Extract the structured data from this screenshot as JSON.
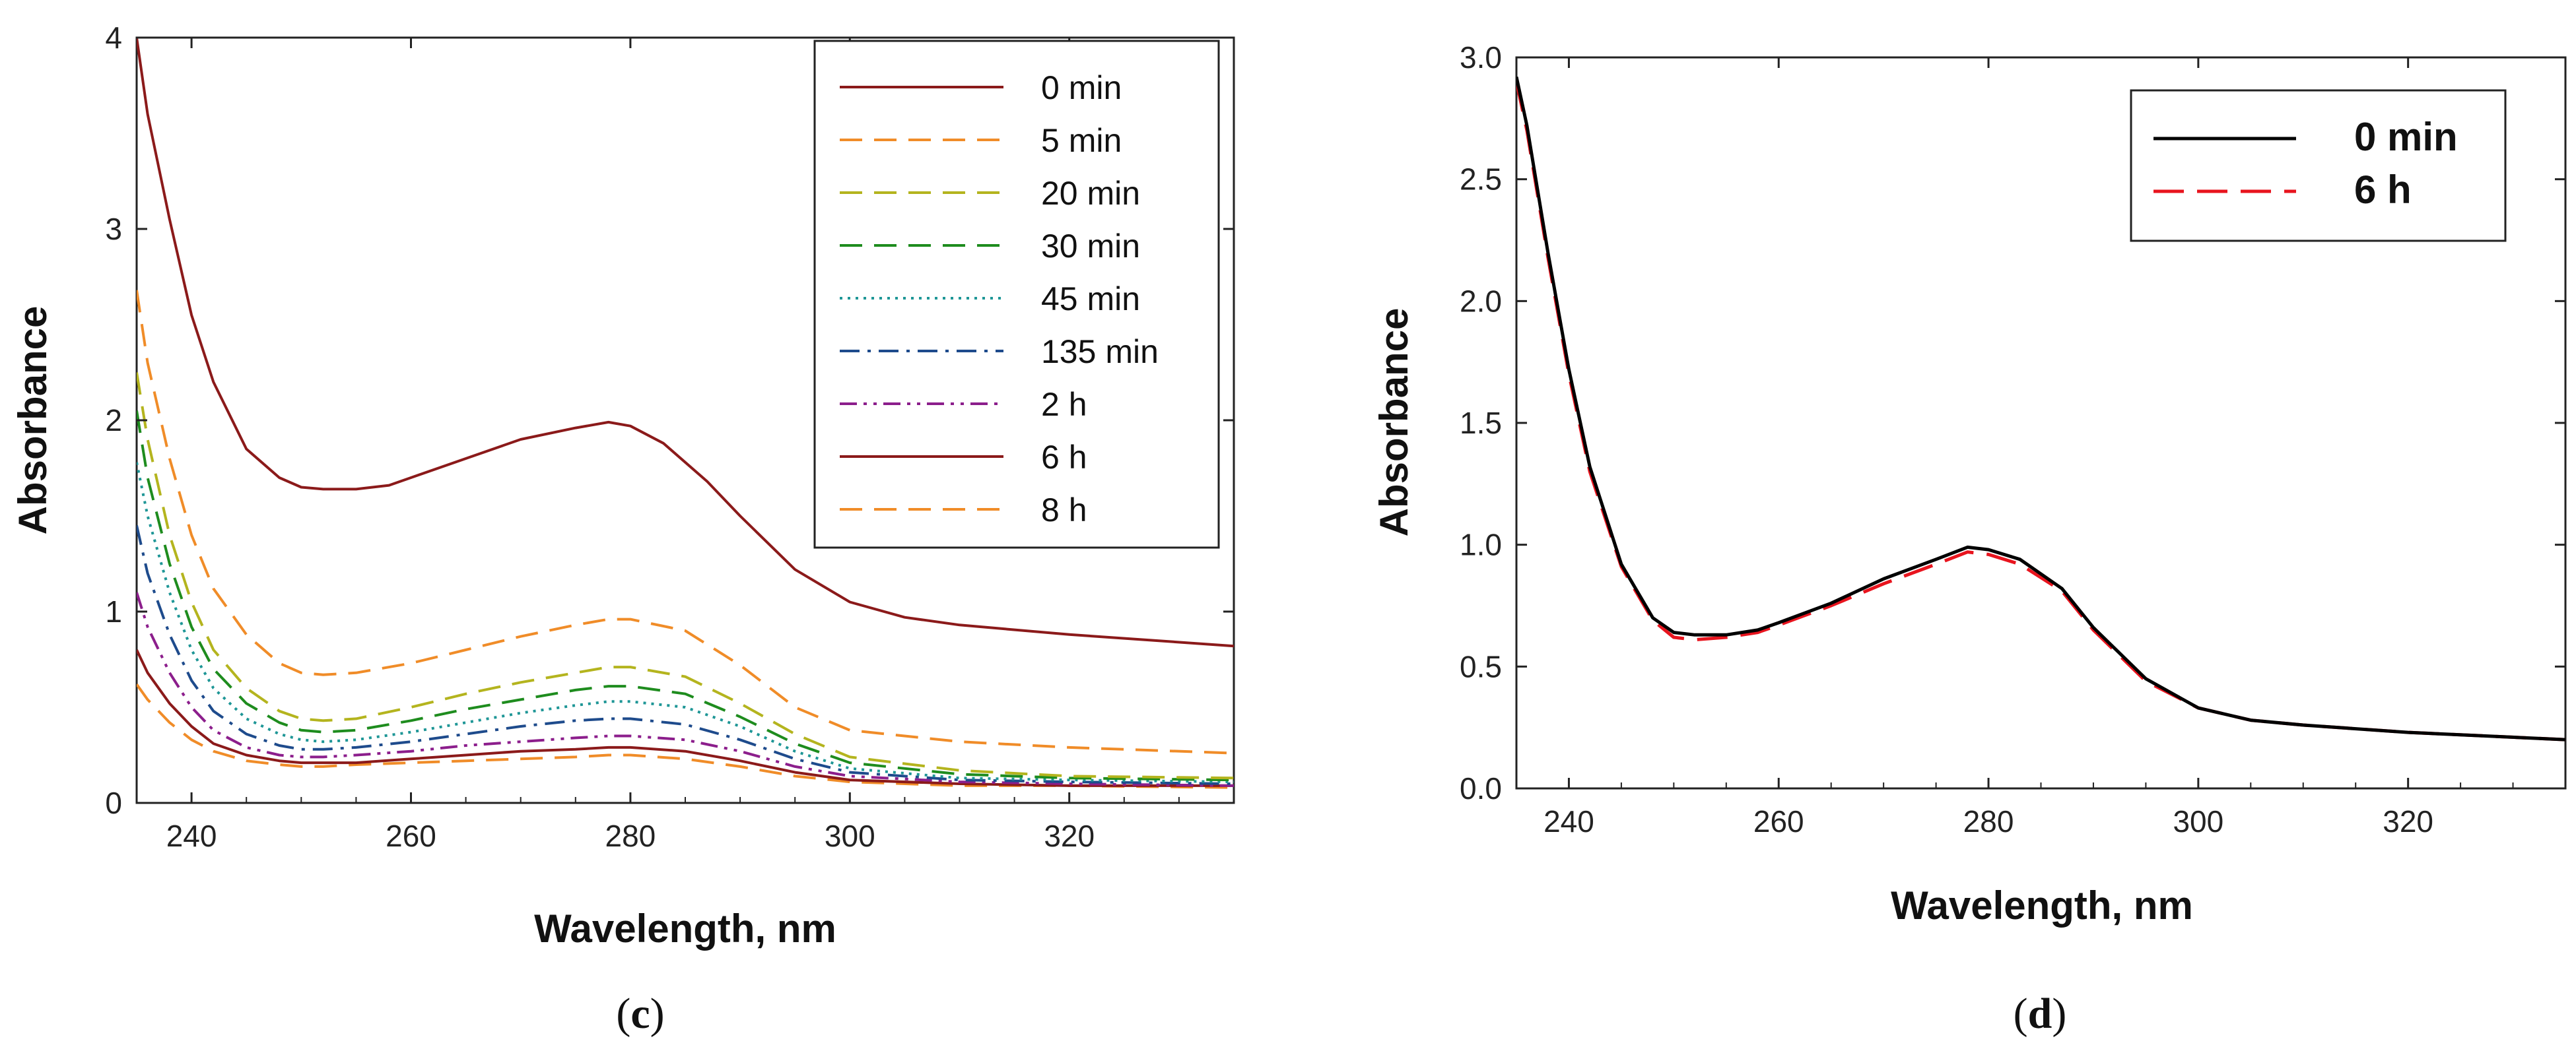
{
  "chart_data": [
    {
      "panel_label_open": "(",
      "panel_label_letter": "c",
      "panel_label_close": ")",
      "type": "line",
      "xlabel": "Wavelength, nm",
      "ylabel": "Absorbance",
      "xlim": [
        235,
        335
      ],
      "ylim": [
        0,
        4
      ],
      "xticks": [
        240,
        260,
        280,
        300,
        320
      ],
      "yticks": [
        0,
        1,
        2,
        3,
        4
      ],
      "ytick_labels": [
        "0",
        "1",
        "2",
        "3",
        "4"
      ],
      "grid": false,
      "legend_position": "top-right",
      "series": [
        {
          "name": "0 min",
          "color": "#8B1A1A",
          "style": "solid",
          "x": [
            235,
            236,
            238,
            240,
            242,
            245,
            248,
            250,
            252,
            255,
            258,
            260,
            265,
            270,
            275,
            278,
            280,
            283,
            287,
            290,
            295,
            300,
            305,
            310,
            320,
            335
          ],
          "y": [
            4.0,
            3.6,
            3.05,
            2.55,
            2.2,
            1.85,
            1.7,
            1.65,
            1.64,
            1.64,
            1.66,
            1.7,
            1.8,
            1.9,
            1.96,
            1.99,
            1.97,
            1.88,
            1.68,
            1.5,
            1.22,
            1.05,
            0.97,
            0.93,
            0.88,
            0.82
          ]
        },
        {
          "name": "5 min",
          "color": "#F08C28",
          "style": "dash",
          "x": [
            235,
            236,
            238,
            240,
            242,
            245,
            248,
            250,
            252,
            255,
            260,
            265,
            270,
            275,
            278,
            280,
            285,
            290,
            295,
            300,
            310,
            320,
            335
          ],
          "y": [
            2.68,
            2.3,
            1.8,
            1.4,
            1.12,
            0.88,
            0.73,
            0.68,
            0.67,
            0.68,
            0.73,
            0.8,
            0.87,
            0.93,
            0.96,
            0.96,
            0.9,
            0.72,
            0.5,
            0.38,
            0.32,
            0.29,
            0.26
          ]
        },
        {
          "name": "20 min",
          "color": "#B4B41E",
          "style": "dash",
          "x": [
            235,
            236,
            238,
            240,
            242,
            245,
            248,
            250,
            252,
            255,
            260,
            265,
            270,
            275,
            278,
            280,
            285,
            290,
            295,
            300,
            310,
            320,
            335
          ],
          "y": [
            2.25,
            1.9,
            1.4,
            1.05,
            0.8,
            0.6,
            0.48,
            0.44,
            0.43,
            0.44,
            0.5,
            0.57,
            0.63,
            0.68,
            0.71,
            0.71,
            0.66,
            0.52,
            0.36,
            0.24,
            0.17,
            0.14,
            0.13
          ]
        },
        {
          "name": "30 min",
          "color": "#1E8C1E",
          "style": "dash",
          "x": [
            235,
            236,
            238,
            240,
            242,
            245,
            248,
            250,
            252,
            255,
            260,
            265,
            270,
            275,
            278,
            280,
            285,
            290,
            295,
            300,
            310,
            320,
            335
          ],
          "y": [
            2.05,
            1.7,
            1.25,
            0.92,
            0.7,
            0.52,
            0.42,
            0.38,
            0.37,
            0.38,
            0.43,
            0.49,
            0.54,
            0.59,
            0.61,
            0.61,
            0.57,
            0.45,
            0.31,
            0.21,
            0.15,
            0.13,
            0.12
          ]
        },
        {
          "name": "45 min",
          "color": "#1E9696",
          "style": "dot",
          "x": [
            235,
            236,
            238,
            240,
            242,
            245,
            248,
            250,
            252,
            255,
            260,
            265,
            270,
            275,
            278,
            280,
            285,
            290,
            295,
            300,
            310,
            320,
            335
          ],
          "y": [
            1.78,
            1.5,
            1.1,
            0.8,
            0.6,
            0.44,
            0.36,
            0.33,
            0.32,
            0.33,
            0.37,
            0.42,
            0.47,
            0.51,
            0.53,
            0.53,
            0.5,
            0.4,
            0.27,
            0.18,
            0.13,
            0.12,
            0.11
          ]
        },
        {
          "name": "135 min",
          "color": "#1E4B8C",
          "style": "dashdot",
          "x": [
            235,
            236,
            238,
            240,
            242,
            245,
            248,
            250,
            252,
            255,
            260,
            265,
            270,
            275,
            278,
            280,
            285,
            290,
            295,
            300,
            310,
            320,
            335
          ],
          "y": [
            1.45,
            1.2,
            0.88,
            0.64,
            0.48,
            0.36,
            0.3,
            0.28,
            0.28,
            0.29,
            0.32,
            0.36,
            0.4,
            0.43,
            0.44,
            0.44,
            0.41,
            0.33,
            0.23,
            0.16,
            0.12,
            0.11,
            0.1
          ]
        },
        {
          "name": "2 h",
          "color": "#8C1E8C",
          "style": "dashdotdot",
          "x": [
            235,
            236,
            238,
            240,
            242,
            245,
            248,
            250,
            252,
            255,
            260,
            265,
            270,
            275,
            278,
            280,
            285,
            290,
            295,
            300,
            310,
            320,
            335
          ],
          "y": [
            1.1,
            0.92,
            0.68,
            0.5,
            0.38,
            0.29,
            0.25,
            0.24,
            0.24,
            0.25,
            0.27,
            0.3,
            0.32,
            0.34,
            0.35,
            0.35,
            0.33,
            0.27,
            0.19,
            0.14,
            0.11,
            0.1,
            0.09
          ]
        },
        {
          "name": "6 h",
          "color": "#8B1A1A",
          "style": "solid",
          "x": [
            235,
            236,
            238,
            240,
            242,
            245,
            248,
            250,
            252,
            255,
            260,
            265,
            270,
            275,
            278,
            280,
            285,
            290,
            295,
            300,
            310,
            320,
            335
          ],
          "y": [
            0.8,
            0.68,
            0.52,
            0.4,
            0.31,
            0.25,
            0.22,
            0.21,
            0.21,
            0.21,
            0.23,
            0.25,
            0.27,
            0.28,
            0.29,
            0.29,
            0.27,
            0.22,
            0.16,
            0.12,
            0.1,
            0.09,
            0.09
          ]
        },
        {
          "name": "8 h",
          "color": "#F08C28",
          "style": "dash",
          "x": [
            235,
            236,
            238,
            240,
            242,
            245,
            248,
            250,
            252,
            255,
            260,
            265,
            270,
            275,
            278,
            280,
            285,
            290,
            295,
            300,
            310,
            320,
            335
          ],
          "y": [
            0.62,
            0.54,
            0.42,
            0.33,
            0.27,
            0.22,
            0.2,
            0.19,
            0.19,
            0.2,
            0.21,
            0.22,
            0.23,
            0.24,
            0.25,
            0.25,
            0.23,
            0.19,
            0.14,
            0.11,
            0.09,
            0.09,
            0.08
          ]
        }
      ]
    },
    {
      "panel_label_open": "(",
      "panel_label_letter": "d",
      "panel_label_close": ")",
      "type": "line",
      "xlabel": "Wavelength, nm",
      "ylabel": "Absorbance",
      "xlim": [
        235,
        335
      ],
      "ylim": [
        0,
        3
      ],
      "xticks": [
        240,
        260,
        280,
        300,
        320
      ],
      "yticks": [
        0,
        0.5,
        1,
        1.5,
        2,
        2.5,
        3
      ],
      "ytick_labels": [
        "0.0",
        "0.5",
        "1.0",
        "1.5",
        "2.0",
        "2.5",
        "3.0"
      ],
      "grid": false,
      "legend_position": "top-right",
      "series": [
        {
          "name": "0 min",
          "color": "#000000",
          "style": "solid",
          "x": [
            235,
            236,
            238,
            240,
            242,
            245,
            248,
            250,
            252,
            255,
            258,
            260,
            265,
            270,
            275,
            278,
            280,
            283,
            287,
            290,
            295,
            300,
            305,
            310,
            320,
            335
          ],
          "y": [
            2.92,
            2.72,
            2.2,
            1.72,
            1.32,
            0.92,
            0.7,
            0.64,
            0.63,
            0.63,
            0.65,
            0.68,
            0.76,
            0.86,
            0.94,
            0.99,
            0.98,
            0.94,
            0.82,
            0.66,
            0.45,
            0.33,
            0.28,
            0.26,
            0.23,
            0.2
          ]
        },
        {
          "name": "6 h",
          "color": "#E8141E",
          "style": "longdash",
          "x": [
            235,
            236,
            238,
            240,
            242,
            245,
            248,
            250,
            252,
            255,
            258,
            260,
            265,
            270,
            275,
            278,
            280,
            283,
            287,
            290,
            295,
            300,
            305,
            310,
            320,
            335
          ],
          "y": [
            2.9,
            2.7,
            2.18,
            1.7,
            1.3,
            0.91,
            0.69,
            0.62,
            0.61,
            0.62,
            0.64,
            0.67,
            0.75,
            0.84,
            0.92,
            0.97,
            0.96,
            0.92,
            0.81,
            0.65,
            0.44,
            0.33,
            0.28,
            0.26,
            0.23,
            0.2
          ]
        }
      ]
    }
  ]
}
